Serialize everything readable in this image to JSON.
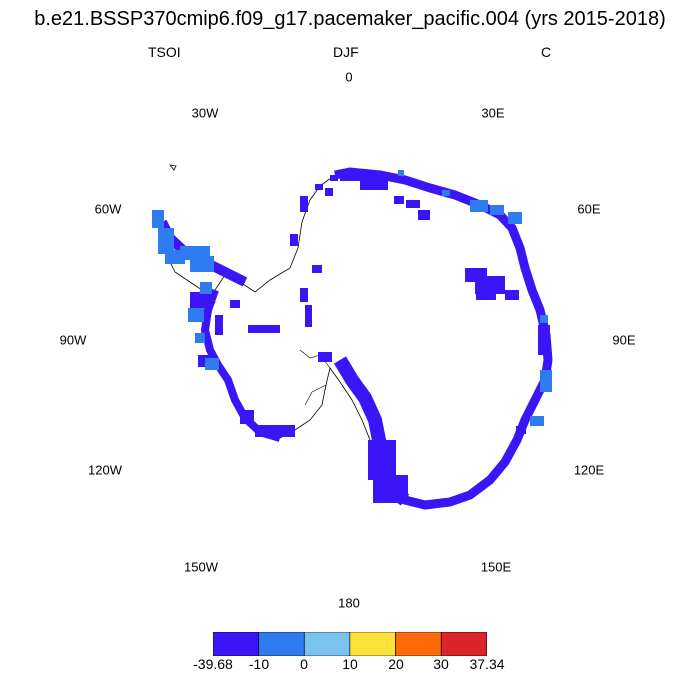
{
  "title": "b.e21.BSSP370cmip6.f09_g17.pacemaker_pacific.004 (yrs 2015-2018)",
  "subtitle_left": "TSOI",
  "subtitle_center": "DJF",
  "subtitle_right": "C",
  "longitude_labels": [
    "0",
    "30E",
    "60E",
    "90E",
    "120E",
    "150E",
    "180",
    "150W",
    "120W",
    "90W",
    "60W",
    "30W"
  ],
  "colorbar": {
    "labels": [
      "-39.68",
      "-10",
      "0",
      "10",
      "20",
      "30",
      "37.34"
    ],
    "colors": [
      "#3b15f5",
      "#2e7cf0",
      "#7ac3ee",
      "#fde23a",
      "#fb6a0b",
      "#d9262a"
    ]
  },
  "map_colors": {
    "dominant": "#3b15f5",
    "secondary": "#2e7cf0",
    "coastline": "#000000"
  }
}
